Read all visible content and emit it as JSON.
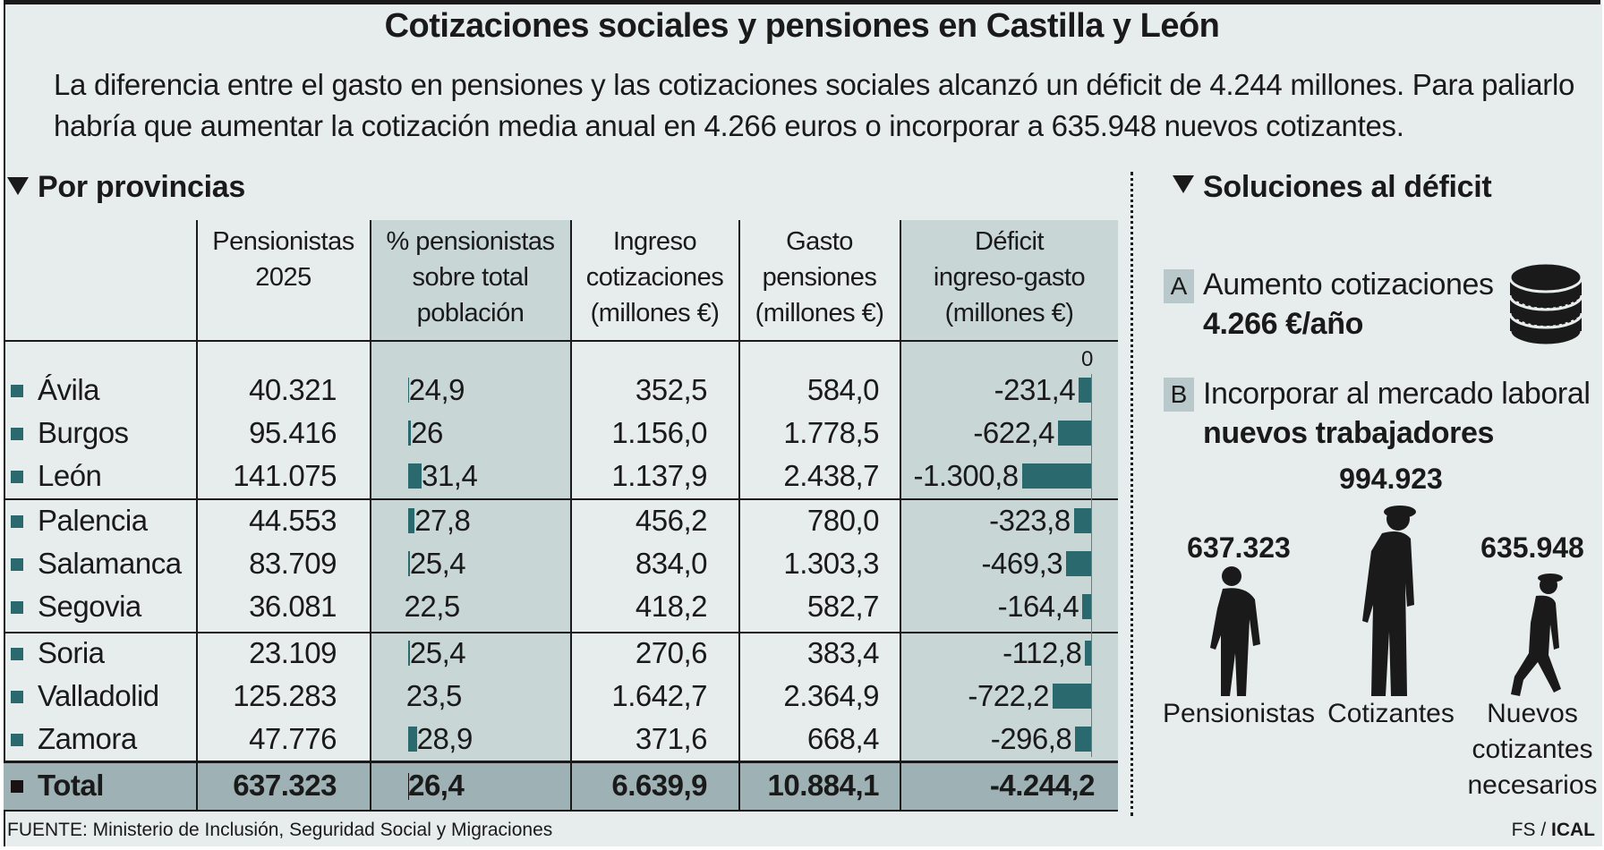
{
  "title": "Cotizaciones sociales y pensiones en Castilla y León",
  "subtitle": "La diferencia entre el gasto en pensiones y las cotizaciones sociales alcanzó un déficit de 4.244 millones. Para paliarlo habría que aumentar la cotización media anual en 4.266 euros o incorporar a 635.948 nuevos cotizantes.",
  "left_section": "Por provincias",
  "right_section": "Soluciones al déficit",
  "colors": {
    "bar": "#2a6a6e",
    "total_bar": "#1a1212",
    "shade": "#c9d6d6",
    "total_band": "#9eb2b6",
    "background": "#e7edec"
  },
  "chart_data": {
    "type": "table",
    "columns": [
      "Pensionistas\n2025",
      "% pensionistas\nsobre total\npoblación",
      "Ingreso\ncotizaciones\n(millones €)",
      "Gasto\npensiones\n(millones €)",
      "Déficit\ningreso-gasto\n(millones €)"
    ],
    "zero_label": "0",
    "rows": [
      {
        "province": "Ávila",
        "pensioners": "40.321",
        "pct": "24,9",
        "pct_value": 24.9,
        "ingreso": "352,5",
        "gasto": "584,0",
        "deficit": "-231,4",
        "deficit_value": -231.4
      },
      {
        "province": "Burgos",
        "pensioners": "95.416",
        "pct": "26",
        "pct_value": 26.0,
        "ingreso": "1.156,0",
        "gasto": "1.778,5",
        "deficit": "-622,4",
        "deficit_value": -622.4
      },
      {
        "province": "León",
        "pensioners": "141.075",
        "pct": "31,4",
        "pct_value": 31.4,
        "ingreso": "1.137,9",
        "gasto": "2.438,7",
        "deficit": "-1.300,8",
        "deficit_value": -1300.8
      },
      {
        "province": "Palencia",
        "pensioners": "44.553",
        "pct": "27,8",
        "pct_value": 27.8,
        "ingreso": "456,2",
        "gasto": "780,0",
        "deficit": "-323,8",
        "deficit_value": -323.8
      },
      {
        "province": "Salamanca",
        "pensioners": "83.709",
        "pct": "25,4",
        "pct_value": 25.4,
        "ingreso": "834,0",
        "gasto": "1.303,3",
        "deficit": "-469,3",
        "deficit_value": -469.3
      },
      {
        "province": "Segovia",
        "pensioners": "36.081",
        "pct": "22,5",
        "pct_value": 22.5,
        "ingreso": "418,2",
        "gasto": "582,7",
        "deficit": "-164,4",
        "deficit_value": -164.4
      },
      {
        "province": "Soria",
        "pensioners": "23.109",
        "pct": "25,4",
        "pct_value": 25.4,
        "ingreso": "270,6",
        "gasto": "383,4",
        "deficit": "-112,8",
        "deficit_value": -112.8
      },
      {
        "province": "Valladolid",
        "pensioners": "125.283",
        "pct": "23,5",
        "pct_value": 23.5,
        "ingreso": "1.642,7",
        "gasto": "2.364,9",
        "deficit": "-722,2",
        "deficit_value": -722.2
      },
      {
        "province": "Zamora",
        "pensioners": "47.776",
        "pct": "28,9",
        "pct_value": 28.9,
        "ingreso": "371,6",
        "gasto": "668,4",
        "deficit": "-296,8",
        "deficit_value": -296.8
      }
    ],
    "total": {
      "province": "Total",
      "pensioners": "637.323",
      "pct": "26,4",
      "pct_value": 26.4,
      "ingreso": "6.639,9",
      "gasto": "10.884,1",
      "deficit": "-4.244,2"
    }
  },
  "solutions": {
    "a": {
      "badge": "A",
      "line1": "Aumento cotizaciones",
      "line2": "4.266 €/año",
      "icon": "coins-icon"
    },
    "b": {
      "badge": "B",
      "line1": "Incorporar al mercado laboral",
      "line2": "nuevos trabajadores"
    },
    "figures": [
      {
        "value": "637.323",
        "label": "Pensionistas"
      },
      {
        "value": "994.923",
        "label": "Cotizantes"
      },
      {
        "value": "635.948",
        "label": "Nuevos\ncotizantes\nnecesarios"
      }
    ]
  },
  "source": "FUENTE: Ministerio de Inclusión, Seguridad Social y Migraciones",
  "credit_prefix": "FS / ",
  "credit_brand": "ICAL"
}
